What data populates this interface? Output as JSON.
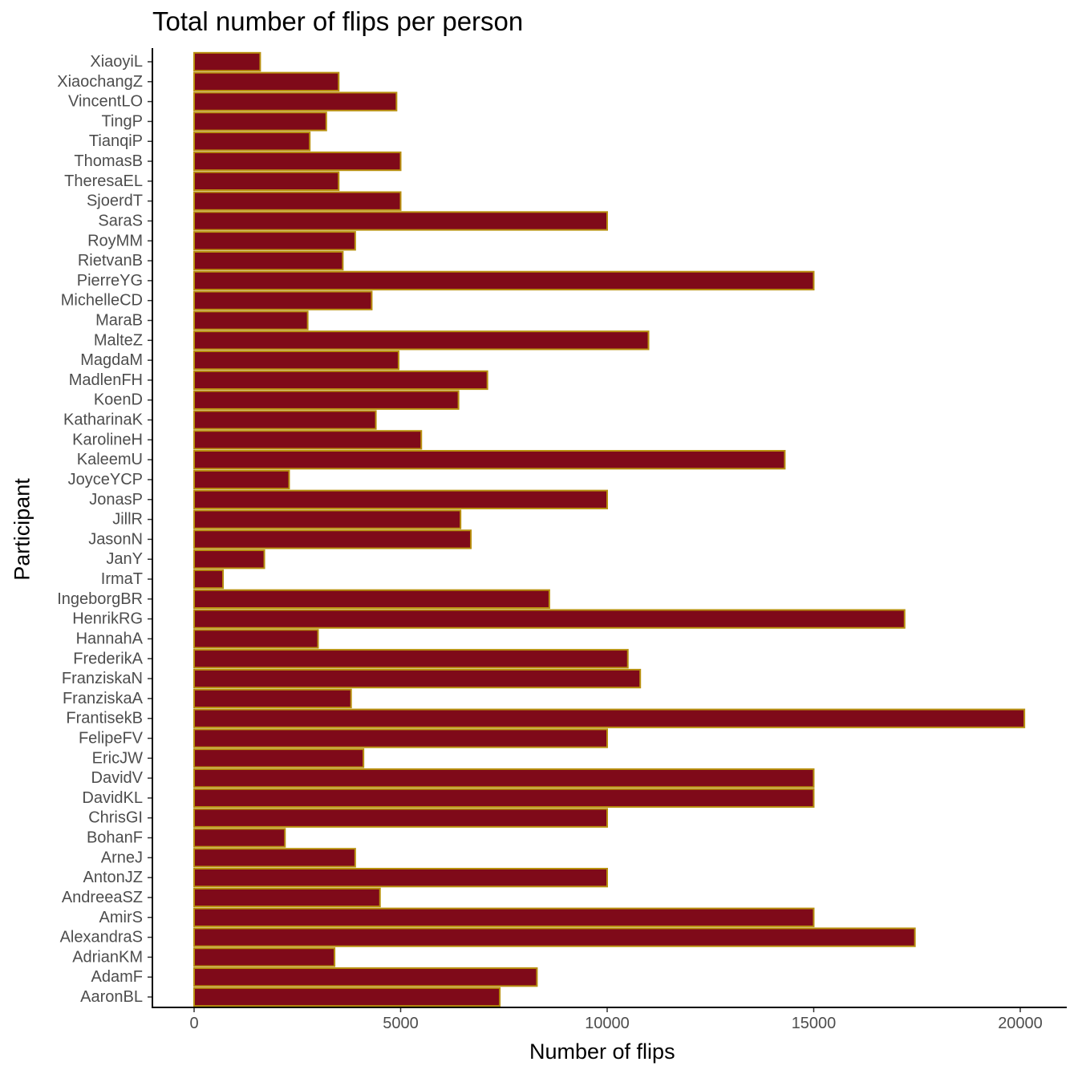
{
  "chart_data": {
    "type": "bar",
    "orientation": "horizontal",
    "title": "Total number of flips per person",
    "xlabel": "Number of flips",
    "ylabel": "Participant",
    "xlim": [
      -1000,
      21100
    ],
    "xticks": [
      0,
      5000,
      10000,
      15000,
      20000
    ],
    "categories": [
      "AaronBL",
      "AdamF",
      "AdrianKM",
      "AlexandraS",
      "AmirS",
      "AndreeaSZ",
      "AntonJZ",
      "ArneJ",
      "BohanF",
      "ChrisGI",
      "DavidKL",
      "DavidV",
      "EricJW",
      "FelipeFV",
      "FrantisekB",
      "FranziskaA",
      "FranziskaN",
      "FrederikA",
      "HannahA",
      "HenrikRG",
      "IngeborgBR",
      "IrmaT",
      "JanY",
      "JasonN",
      "JillR",
      "JonasP",
      "JoyceYCP",
      "KaleemU",
      "KarolineH",
      "KatharinaK",
      "KoenD",
      "MadlenFH",
      "MagdaM",
      "MalteZ",
      "MaraB",
      "MichelleCD",
      "PierreYG",
      "RietvanB",
      "RoyMM",
      "SaraS",
      "SjoerdT",
      "TheresaEL",
      "ThomasB",
      "TianqiP",
      "TingP",
      "VincentLO",
      "XiaochangZ",
      "XiaoyiL"
    ],
    "values": [
      7400,
      8300,
      3400,
      17450,
      15000,
      4500,
      10000,
      3900,
      2200,
      10000,
      15000,
      15000,
      4100,
      10000,
      20100,
      3800,
      10800,
      10500,
      3000,
      17200,
      8600,
      700,
      1700,
      6700,
      6450,
      10000,
      2300,
      14300,
      5500,
      4400,
      6400,
      7100,
      4950,
      11000,
      2750,
      4300,
      15000,
      3600,
      3900,
      10000,
      5000,
      3500,
      5000,
      2800,
      3200,
      4900,
      3500,
      1600
    ],
    "colors": {
      "bar_fill": "#7f0a19",
      "bar_outline": "#b8900f",
      "axis": "#000000",
      "tick_label": "#4d4d4d"
    },
    "grid": false,
    "legend": "none"
  }
}
